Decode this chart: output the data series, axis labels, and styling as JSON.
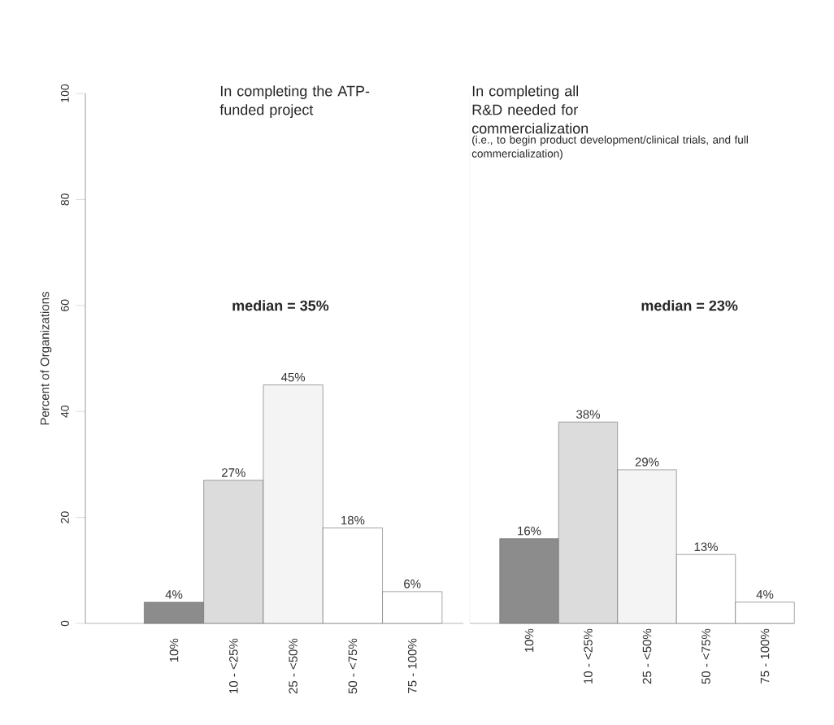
{
  "chart_data": [
    {
      "type": "bar",
      "title": "In completing the ATP-funded project",
      "ylabel": "Percent of Organizations",
      "categories": [
        "10%",
        "10 - <25%",
        "25 - <50%",
        "50 - <75%",
        "75 - 100%"
      ],
      "values": [
        4,
        27,
        45,
        18,
        6
      ],
      "colors": [
        "#8c8c8c",
        "#dcdcdc",
        "#f4f4f4",
        "#ffffff",
        "#ffffff"
      ],
      "value_labels": [
        "4%",
        "27%",
        "45%",
        "18%",
        "6%"
      ],
      "ylim": [
        0,
        100
      ],
      "yticks": [
        0,
        20,
        40,
        60,
        80,
        100
      ],
      "annotations": [
        "median = 35%"
      ]
    },
    {
      "type": "bar",
      "title": "In completing all R&D needed for commercialization",
      "subtitle": "(i.e., to begin product development/clinical trials, and full commercialization)",
      "categories": [
        "10%",
        "10 - <25%",
        "25 - <50%",
        "50 - <75%",
        "75 - 100%"
      ],
      "values": [
        16,
        38,
        29,
        13,
        4
      ],
      "colors": [
        "#8c8c8c",
        "#dcdcdc",
        "#f4f4f4",
        "#ffffff",
        "#ffffff"
      ],
      "value_labels": [
        "16%",
        "38%",
        "29%",
        "13%",
        "4%"
      ],
      "ylim": [
        0,
        100
      ],
      "tick_labels": "x",
      "annotations": [
        "median =  23%"
      ]
    }
  ]
}
